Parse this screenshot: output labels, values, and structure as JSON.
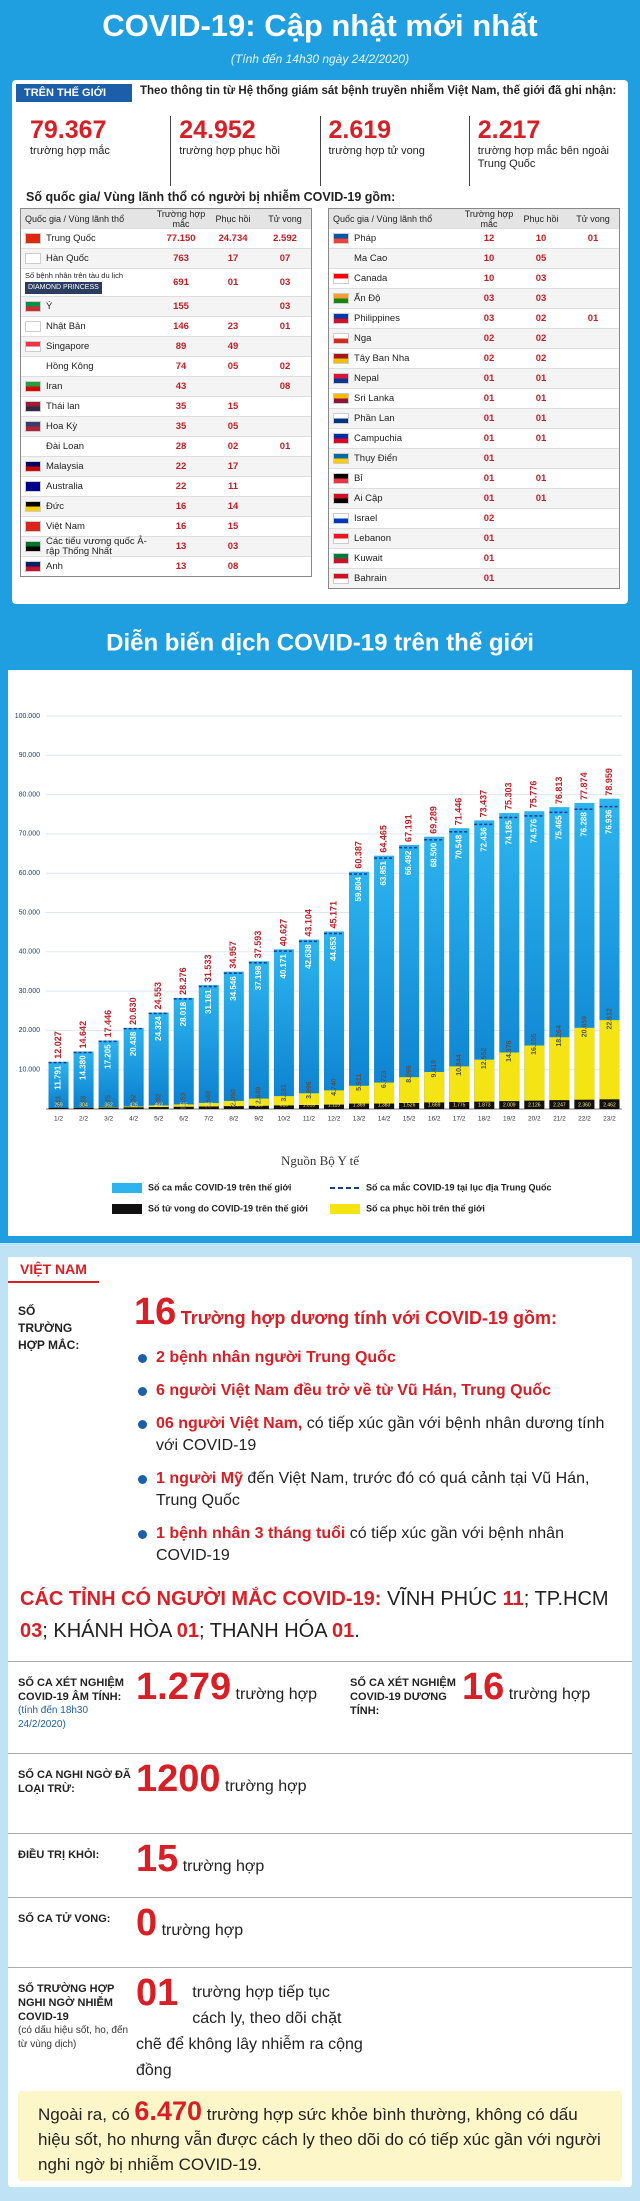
{
  "header": {
    "title": "COVID-19: Cập nhật mới nhất",
    "subtitle": "(Tính đến 14h30 ngày 24/2/2020)"
  },
  "world": {
    "section_label": "TRÊN THẾ GIỚI",
    "intro": "Theo thông tin từ Hệ thống giám sát bệnh truyền nhiễm Việt Nam, thế giới đã ghi nhận:",
    "stats": [
      {
        "value": "79.367",
        "label": "trường hợp mắc"
      },
      {
        "value": "24.952",
        "label": "trường hợp phục hồi"
      },
      {
        "value": "2.619",
        "label": "trường hợp tử vong"
      },
      {
        "value": "2.217",
        "label": "trường hợp mắc bên ngoài Trung Quốc"
      }
    ],
    "countries_heading": "Số quốc gia/ Vùng lãnh thổ có người bị nhiễm COVID-19 gồm:",
    "table": {
      "columns": [
        "Quốc gia / Vùng lãnh thổ",
        "Trường hợp mắc",
        "Phục hồi",
        "Tử vong"
      ],
      "left_rows": [
        {
          "country": "Trung Quốc",
          "cases": "77.150",
          "recovered": "24.734",
          "deaths": "2.592"
        },
        {
          "country": "Hàn Quốc",
          "cases": "763",
          "recovered": "17",
          "deaths": "07"
        },
        {
          "country": "Số bệnh nhân trên tàu du lịch",
          "ship": "DIAMOND PRINCESS",
          "cases": "691",
          "recovered": "01",
          "deaths": "03"
        },
        {
          "country": "Ý",
          "cases": "155",
          "deaths": "03"
        },
        {
          "country": "Nhật Bản",
          "cases": "146",
          "recovered": "23",
          "deaths": "01"
        },
        {
          "country": "Singapore",
          "cases": "89",
          "recovered": "49"
        },
        {
          "country": "Hồng Kông",
          "cases": "74",
          "recovered": "05",
          "deaths": "02"
        },
        {
          "country": "Iran",
          "cases": "43",
          "deaths": "08"
        },
        {
          "country": "Thái lan",
          "cases": "35",
          "recovered": "15"
        },
        {
          "country": "Hoa Kỳ",
          "cases": "35",
          "recovered": "05"
        },
        {
          "country": "Đài Loan",
          "cases": "28",
          "recovered": "02",
          "deaths": "01"
        },
        {
          "country": "Malaysia",
          "cases": "22",
          "recovered": "17"
        },
        {
          "country": "Australia",
          "cases": "22",
          "recovered": "11"
        },
        {
          "country": "Đức",
          "cases": "16",
          "recovered": "14"
        },
        {
          "country": "Việt Nam",
          "cases": "16",
          "recovered": "15"
        },
        {
          "country": "Các tiểu vương quốc Ả-rập Thống Nhất",
          "cases": "13",
          "recovered": "03"
        },
        {
          "country": "Anh",
          "cases": "13",
          "recovered": "08"
        }
      ],
      "right_rows": [
        {
          "country": "Pháp",
          "cases": "12",
          "recovered": "10",
          "deaths": "01"
        },
        {
          "country": "Ma Cao",
          "cases": "10",
          "recovered": "05"
        },
        {
          "country": "Canada",
          "cases": "10",
          "recovered": "03"
        },
        {
          "country": "Ấn Độ",
          "cases": "03",
          "recovered": "03"
        },
        {
          "country": "Philippines",
          "cases": "03",
          "recovered": "02",
          "deaths": "01"
        },
        {
          "country": "Nga",
          "cases": "02",
          "recovered": "02"
        },
        {
          "country": "Tây Ban Nha",
          "cases": "02",
          "recovered": "02"
        },
        {
          "country": "Nepal",
          "cases": "01",
          "recovered": "01"
        },
        {
          "country": "Sri Lanka",
          "cases": "01",
          "recovered": "01"
        },
        {
          "country": "Phần Lan",
          "cases": "01",
          "recovered": "01"
        },
        {
          "country": "Campuchia",
          "cases": "01",
          "recovered": "01"
        },
        {
          "country": "Thụy Điển",
          "cases": "01"
        },
        {
          "country": "Bỉ",
          "cases": "01",
          "recovered": "01"
        },
        {
          "country": "Ai Cập",
          "cases": "01",
          "recovered": "01"
        },
        {
          "country": "Israel",
          "cases": "02"
        },
        {
          "country": "Lebanon",
          "cases": "01"
        },
        {
          "country": "Kuwait",
          "cases": "01"
        },
        {
          "country": "Bahrain",
          "cases": "01"
        }
      ]
    }
  },
  "chart_data": {
    "type": "bar",
    "title": "Diễn biến  dịch COVID-19 trên thế giới",
    "source": "Nguồn Bộ Y tế",
    "categories": [
      "1/2",
      "2/2",
      "3/2",
      "4/2",
      "5/2",
      "6/2",
      "7/2",
      "8/2",
      "9/2",
      "10/2",
      "11/2",
      "12/2",
      "13/2",
      "14/2",
      "15/2",
      "16/2",
      "17/2",
      "18/2",
      "19/2",
      "20/2",
      "21/2",
      "22/2",
      "23/2"
    ],
    "series": [
      {
        "name": "Số ca mắc COVID-19 trên thế giới",
        "color": "#2db4ee",
        "values": [
          12027,
          14642,
          17446,
          20630,
          24553,
          28276,
          31533,
          34957,
          37593,
          40627,
          43104,
          45171,
          60387,
          64465,
          67191,
          69289,
          71446,
          73437,
          75303,
          75776,
          76813,
          77874,
          78959
        ],
        "value_labels": [
          "12.027",
          "14.642",
          "17.446",
          "20.630",
          "24.553",
          "28.276",
          "31.533",
          "34.957",
          "37.593",
          "40.627",
          "43.104",
          "45.171",
          "60.387",
          "64.465",
          "67.191",
          "69.289",
          "71.446",
          "73.437",
          "75.303",
          "75.776",
          "76.813",
          "77.874",
          "78.959"
        ]
      },
      {
        "name": "Số ca mắc COVID-19 tại lục địa Trung Quốc",
        "color": "#1a3a8f",
        "style": "dashed",
        "values": [
          11791,
          14380,
          17205,
          20438,
          24324,
          28018,
          31161,
          34546,
          37198,
          40171,
          42638,
          44653,
          59804,
          63851,
          66492,
          68500,
          70548,
          72436,
          74185,
          74576,
          75465,
          76288,
          76936
        ],
        "value_labels": [
          "11.791",
          "14.380",
          "17.205",
          "20.438",
          "24.324",
          "28.018",
          "31.161",
          "34.546",
          "37.198",
          "40.171",
          "42.638",
          "44.653",
          "59.804",
          "63.851",
          "66.492",
          "68.500",
          "70.548",
          "72.436",
          "74.185",
          "74.576",
          "75.465",
          "76.288",
          "76.936"
        ]
      },
      {
        "name": "Số tử vong do COVID-19 trên thế giới",
        "color": "#111111",
        "values": [
          259,
          304,
          362,
          426,
          492,
          565,
          638,
          724,
          813,
          910,
          1018,
          1115,
          1369,
          1383,
          1526,
          1669,
          1775,
          1873,
          2009,
          2126,
          2247,
          2360,
          2462
        ],
        "value_labels": [
          "259",
          "304",
          "362",
          "426",
          "492",
          "565",
          "638",
          "724",
          "813",
          "910",
          "1.018",
          "1.115",
          "1.369",
          "1.383",
          "1.526",
          "1.669",
          "1.775",
          "1.873",
          "2.009",
          "2.126",
          "2.247",
          "2.360",
          "2.462"
        ]
      },
      {
        "name": "Số ca phục hồi trên thế giới",
        "color": "#f4e414",
        "values": [
          243,
          328,
          475,
          632,
          892,
          1153,
          1540,
          2050,
          2649,
          3281,
          3996,
          4740,
          5911,
          6723,
          8096,
          9419,
          10844,
          12552,
          14376,
          16155,
          18264,
          20659,
          22612
        ],
        "value_labels": [
          "243",
          "328",
          "475",
          "632",
          "892",
          "1.153",
          "1.540",
          "2.050",
          "2.649",
          "3.281",
          "3.996",
          "4.740",
          "5.911",
          "6.723",
          "8.096",
          "9.419",
          "10.844",
          "12.552",
          "14.376",
          "16.155",
          "18.264",
          "20.659",
          "22.612"
        ]
      }
    ],
    "ylim": [
      0,
      100000
    ],
    "yticks": [
      {
        "value": 10000,
        "label": "10.000"
      },
      {
        "value": 20000,
        "label": "20.000"
      },
      {
        "value": 30000,
        "label": "30.000"
      },
      {
        "value": 40000,
        "label": "40.000"
      },
      {
        "value": 50000,
        "label": "50.000"
      },
      {
        "value": 60000,
        "label": "60.000"
      },
      {
        "value": 70000,
        "label": "70.000"
      },
      {
        "value": 80000,
        "label": "80.000"
      },
      {
        "value": 90000,
        "label": "90.000"
      },
      {
        "value": 100000,
        "label": "100.000"
      }
    ],
    "grid": true,
    "legend": "bottom"
  },
  "vietnam": {
    "section_label": "VIỆT NAM",
    "cases": {
      "label": "SỐ TRƯỜNG HỢP MẮC:",
      "value": "16",
      "heading": "Trường hợp dương tính với COVID-19 gồm:",
      "items": [
        {
          "bold": "2 bệnh nhân người Trung Quốc"
        },
        {
          "bold": "6 người Việt Nam đều trở về từ Vũ Hán, Trung Quốc"
        },
        {
          "bold": "06 người Việt Nam,",
          "text": "có tiếp xúc gần với bệnh nhân dương tính với COVID-19"
        },
        {
          "bold": "1 người Mỹ",
          "text": "đến Việt Nam, trước đó có quá cảnh tại Vũ Hán, Trung Quốc"
        },
        {
          "bold": "1 bệnh nhân 3 tháng tuổi",
          "text": "có tiếp xúc gần với bệnh nhân COVID-19"
        }
      ]
    },
    "provinces": {
      "label": "CÁC TỈNH CÓ NGƯỜI MẮC COVID-19:",
      "items": [
        {
          "name": "VĨNH PHÚC",
          "count": "11",
          "sep": ";"
        },
        {
          "name": "TP.HCM",
          "count": "03",
          "sep": ";"
        },
        {
          "name": "KHÁNH HÒA",
          "count": "01",
          "sep": ";"
        },
        {
          "name": "THANH HÓA",
          "count": "01",
          "sep": "."
        }
      ]
    },
    "tests": [
      {
        "label": "SỐ CA XÉT NGHIỆM COVID-19 ÂM TÍNH:",
        "note": "(tính đến 18h30 24/2/2020)",
        "value": "1.279",
        "unit": "trường hợp"
      },
      {
        "label": "SỐ CA XÉT NGHIỆM COVID-19 DƯƠNG TÍNH:",
        "value": "16",
        "unit": "trường hợp"
      }
    ],
    "rows": [
      {
        "label": "SỐ CA NGHI NGỜ ĐÃ LOẠI TRỪ:",
        "value": "1200",
        "unit": "trường hợp"
      },
      {
        "label": "ĐIỀU TRỊ KHỎI:",
        "value": "15",
        "unit": "trường hợp"
      },
      {
        "label": "SỐ CA TỬ VONG:",
        "value": "0",
        "unit": "trường hợp"
      },
      {
        "label": "SỐ TRƯỜNG HỢP NGHI NGỜ NHIỄM COVID-19",
        "note": "(có dấu hiệu sốt, ho, đến từ vùng dịch)",
        "value": "01",
        "unit": "trường hợp tiếp tục cách ly, theo dõi chặt chẽ để không lây nhiễm ra cộng đồng"
      }
    ],
    "footer": {
      "before": "Ngoài ra, có",
      "value": "6.470",
      "after": "trường hợp sức khỏe bình thường, không có dấu hiệu sốt, ho nhưng vẫn được cách ly theo dõi do có tiếp xúc gần với người nghi ngờ bị nhiễm COVID-19."
    }
  }
}
